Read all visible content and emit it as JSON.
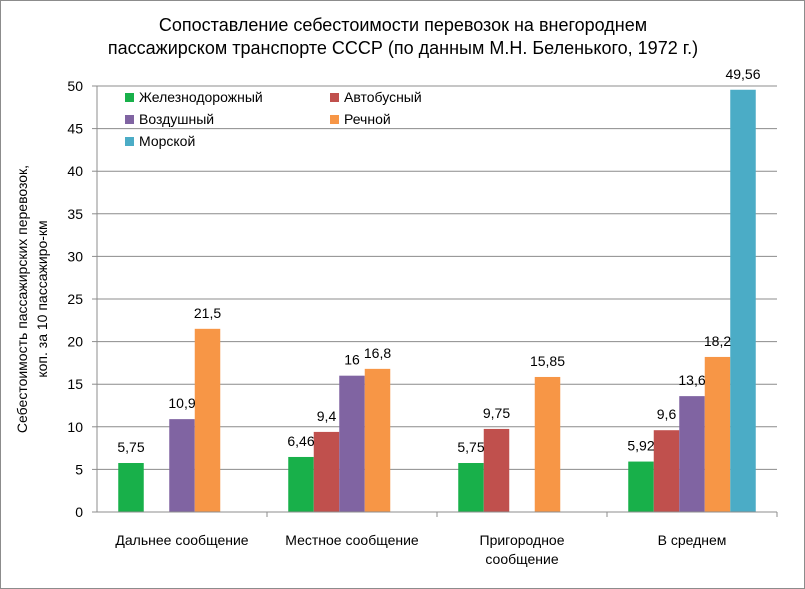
{
  "chart_data": {
    "type": "bar",
    "title": "Сопоставление себестоимости перевозок на внегороднем пассажирском транспорте  СССР (по данным  М.Н. Беленького, 1972 г.)",
    "title_lines": [
      "Сопоставление себестоимости перевозок на внегороднем",
      "пассажирском транспорте  СССР (по данным  М.Н. Беленького, 1972 г.)"
    ],
    "ylabel": "Себестоимость пассажирских перевозок, коп. за 10  пассажиро-км",
    "ylabel_lines": [
      "Себестоимость пассажирских перевозок,",
      "коп. за 10  пассажиро-км"
    ],
    "xlabel": "",
    "ylim": [
      0,
      50
    ],
    "yticks": [
      0,
      5,
      10,
      15,
      20,
      25,
      30,
      35,
      40,
      45,
      50
    ],
    "grid": "horizontal",
    "legend_position": "top-left",
    "categories": [
      "Дальнее сообщение",
      "Местное сообщение",
      "Пригородное сообщение",
      "В среднем"
    ],
    "category_lines": [
      [
        "Дальнее сообщение"
      ],
      [
        "Местное сообщение"
      ],
      [
        "Пригородное",
        "сообщение"
      ],
      [
        "В среднем"
      ]
    ],
    "series": [
      {
        "name": "Железнодорожный",
        "color": "#18b04a",
        "values": [
          5.75,
          6.46,
          5.75,
          5.92
        ],
        "labels": [
          "5,75",
          "6,46",
          "5,75",
          "5,92"
        ]
      },
      {
        "name": "Автобусный",
        "color": "#c0504d",
        "values": [
          null,
          9.4,
          9.75,
          9.6
        ],
        "labels": [
          null,
          "9,4",
          "9,75",
          "9,6"
        ]
      },
      {
        "name": "Воздушный",
        "color": "#8064a2",
        "values": [
          10.9,
          16,
          null,
          13.6
        ],
        "labels": [
          "10,9",
          "16",
          null,
          "13,6"
        ]
      },
      {
        "name": "Речной",
        "color": "#f79646",
        "values": [
          21.5,
          16.8,
          15.85,
          18.2
        ],
        "labels": [
          "21,5",
          "16,8",
          "15,85",
          "18,2"
        ]
      },
      {
        "name": "Морской",
        "color": "#4bacc6",
        "values": [
          null,
          null,
          null,
          49.56
        ],
        "labels": [
          null,
          null,
          null,
          "49,56"
        ]
      }
    ]
  }
}
